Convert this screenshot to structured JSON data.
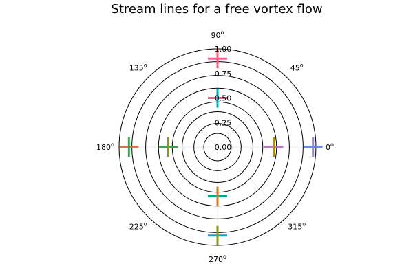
{
  "chart_data": {
    "type": "polar-line",
    "title": "Stream lines for a free vortex flow",
    "grid": true,
    "radial_ticks": [
      "0.00",
      "0.25",
      "0.50",
      "0.75",
      "1.00"
    ],
    "radial_tick_values": [
      0,
      0.25,
      0.5,
      0.75,
      1.0
    ],
    "r_range": [
      0,
      1.0
    ],
    "angular_ticks": [
      {
        "deg": 0,
        "label": "0",
        "suffix": "o"
      },
      {
        "deg": 45,
        "label": "45",
        "suffix": "o"
      },
      {
        "deg": 90,
        "label": "90",
        "suffix": "o"
      },
      {
        "deg": 135,
        "label": "135",
        "suffix": "o"
      },
      {
        "deg": 180,
        "label": "180",
        "suffix": "o"
      },
      {
        "deg": 225,
        "label": "225",
        "suffix": "o"
      },
      {
        "deg": 270,
        "label": "270",
        "suffix": "o"
      },
      {
        "deg": 315,
        "label": "315",
        "suffix": "o"
      }
    ],
    "stream_line_radii": [
      0.14,
      0.24,
      0.36,
      0.46,
      0.6,
      0.73,
      0.87,
      1.0
    ],
    "series_colors": [
      "#009AFA",
      "#E36F47",
      "#3EA44E",
      "#C371D2",
      "#AC8E18",
      "#00AAAE",
      "#ED5E93",
      "#C68225",
      "#00A98D",
      "#8E971D",
      "#00A9CD",
      "#9B7FE8",
      "#618DF6",
      "#F05F73"
    ],
    "markers": [
      {
        "deg": 0,
        "r": 0.57,
        "h_color": "#C371D2",
        "v_color": "#AC8E18"
      },
      {
        "deg": 0,
        "r": 0.97,
        "h_color": "#618DF6",
        "v_color": "#9B7FE8"
      },
      {
        "deg": 90,
        "r": 0.5,
        "h_color": "#ED5E93",
        "v_color": "#00AAAE"
      },
      {
        "deg": 90,
        "r": 0.9,
        "h_color": "#ED5E93",
        "v_color": "#F05F73"
      },
      {
        "deg": 180,
        "r": 0.5,
        "h_color": "#3EA44E",
        "v_color": "#8E971D"
      },
      {
        "deg": 180,
        "r": 0.9,
        "h_color": "#E36F47",
        "v_color": "#3EA44E"
      },
      {
        "deg": 270,
        "r": 0.5,
        "h_color": "#00A98D",
        "v_color": "#C68225"
      },
      {
        "deg": 270,
        "r": 0.9,
        "h_color": "#00A9CD",
        "v_color": "#8E971D"
      }
    ]
  }
}
